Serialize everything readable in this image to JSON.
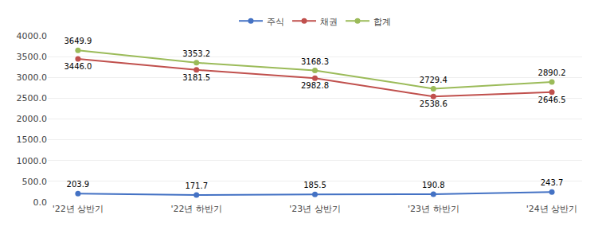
{
  "chart_data": {
    "type": "line",
    "categories": [
      "'22년 상반기",
      "'22년 하반기",
      "'23년 상반기",
      "'23년 하반기",
      "'24년 상반기"
    ],
    "series": [
      {
        "name": "주식",
        "color": "#4472C4",
        "marker": "circle",
        "values": [
          203.9,
          171.7,
          185.5,
          190.8,
          243.7
        ],
        "value_labels": [
          "203.9",
          "171.7",
          "185.5",
          "190.8",
          "243.7"
        ]
      },
      {
        "name": "채권",
        "color": "#C0504D",
        "marker": "circle",
        "values": [
          3446.0,
          3181.5,
          2982.8,
          2538.6,
          2646.5
        ],
        "value_labels": [
          "3446.0",
          "3181.5",
          "2982.8",
          "2538.6",
          "2646.5"
        ]
      },
      {
        "name": "합계",
        "color": "#9BBB59",
        "marker": "circle",
        "values": [
          3649.9,
          3353.2,
          3168.3,
          2729.4,
          2890.2
        ],
        "value_labels": [
          "3649.9",
          "3353.2",
          "3168.3",
          "2729.4",
          "2890.2"
        ]
      }
    ],
    "ylim": [
      0,
      4000
    ],
    "yticks": [
      {
        "value": 0,
        "label": "0.0"
      },
      {
        "value": 500,
        "label": "500.0"
      },
      {
        "value": 1000,
        "label": "1000.0"
      },
      {
        "value": 1500,
        "label": "1500.0"
      },
      {
        "value": 2000,
        "label": "2000.0"
      },
      {
        "value": 2500,
        "label": "2500.0"
      },
      {
        "value": 3000,
        "label": "3000.0"
      },
      {
        "value": 3500,
        "label": "3500.0"
      },
      {
        "value": 4000,
        "label": "4000.0"
      }
    ],
    "grid": true,
    "legend": "top",
    "data_labels": true
  }
}
